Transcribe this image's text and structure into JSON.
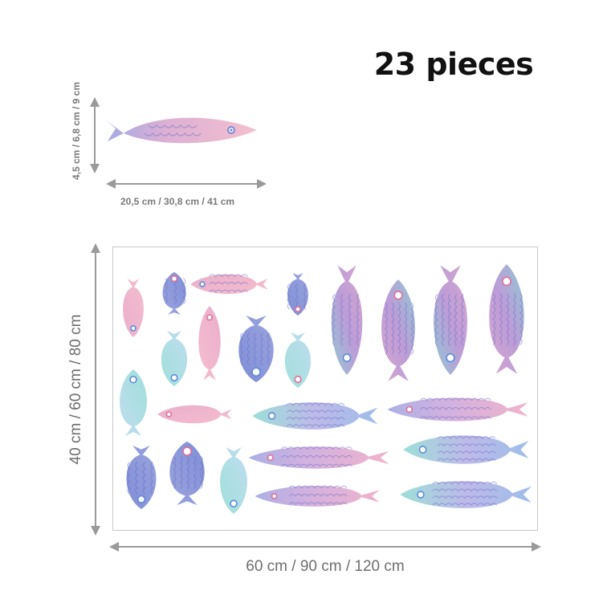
{
  "title": "23 pieces",
  "single_piece": {
    "width_label": "20,5 cm / 30,8 cm / 41 cm",
    "height_label": "4,5 cm / 6,8 cm / 9 cm"
  },
  "sheet": {
    "width_label": "60 cm / 90 cm / 120 cm",
    "height_label": "40 cm / 60 cm / 80 cm"
  },
  "colors": {
    "pink": "#f2a9c2",
    "lilac": "#c6a6dc",
    "blue": "#7f8fd8",
    "aqua": "#8fd8d8",
    "arrow": "#9a9a9a"
  },
  "piece_count": 23
}
